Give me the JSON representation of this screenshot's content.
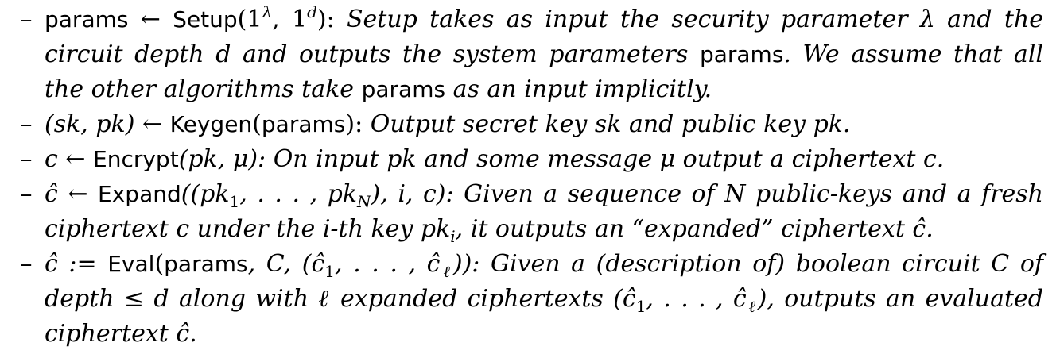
{
  "items": [
    {
      "lines": [
        [
          "params",
          " ← ",
          "Setup",
          "(1",
          "λ",
          ", 1",
          "d",
          "): ",
          "Setup takes as input the security parameter λ and the"
        ],
        [
          "circuit depth d and outputs the system parameters ",
          "params",
          ". We assume that all"
        ],
        [
          "the other algorithms take ",
          "params",
          " as an input implicitly."
        ]
      ]
    },
    {
      "lines": [
        [
          "(sk, pk) ← ",
          "Keygen",
          "(",
          "params",
          "): ",
          "Output secret key sk and public key pk."
        ]
      ]
    },
    {
      "lines": [
        [
          "c ← ",
          "Encrypt",
          "(pk, μ): ",
          "On input pk and some message μ output a ciphertext c."
        ]
      ]
    },
    {
      "lines": [
        [
          "ĉ ← ",
          "Expand",
          "((pk",
          "1",
          ", . . . , pk",
          "N",
          "), i, c): ",
          "Given a sequence of N public-keys and a fresh"
        ],
        [
          "ciphertext c under the i-th key pk",
          "i",
          ", it outputs an “expanded” ciphertext ĉ."
        ]
      ]
    },
    {
      "lines": [
        [
          "ĉ := ",
          "Eval",
          "(",
          "params",
          ", C, (ĉ",
          "1",
          ", . . . , ĉ",
          "ℓ",
          ")): ",
          "Given a (description of) boolean circuit C of"
        ],
        [
          "depth ≤ d along with ℓ expanded ciphertexts (ĉ",
          "1",
          ", . . . , ĉ",
          "ℓ",
          "), outputs an evaluated"
        ],
        [
          "ciphertext ĉ."
        ]
      ]
    }
  ],
  "dash": "–"
}
